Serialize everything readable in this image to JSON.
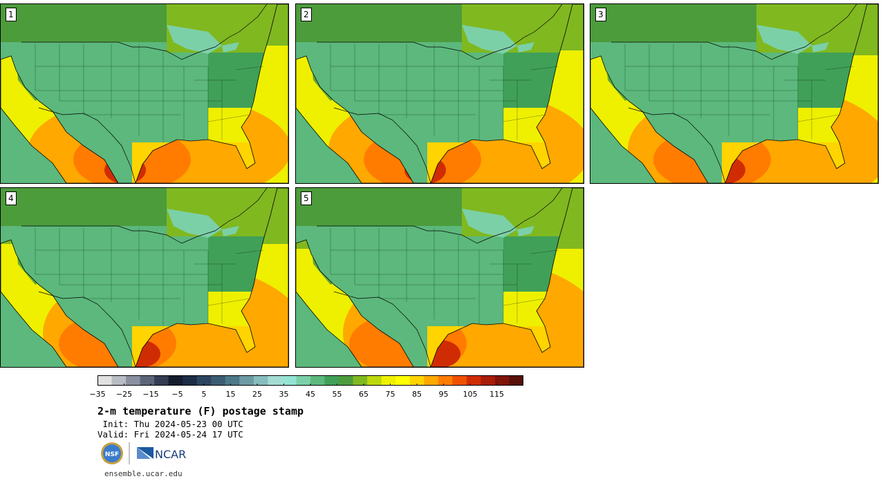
{
  "panels": [
    {
      "label": "1",
      "variant": 0
    },
    {
      "label": "2",
      "variant": 1
    },
    {
      "label": "3",
      "variant": 2
    },
    {
      "label": "4",
      "variant": 3
    },
    {
      "label": "5",
      "variant": 4
    }
  ],
  "colorbar": {
    "min": -35,
    "max": 125,
    "step": 5,
    "tick_labels": [
      "−35",
      "−25",
      "−15",
      "−5",
      "5",
      "15",
      "25",
      "35",
      "45",
      "55",
      "65",
      "75",
      "85",
      "95",
      "105",
      "115"
    ],
    "tick_values": [
      -35,
      -25,
      -15,
      -5,
      5,
      15,
      25,
      35,
      45,
      55,
      65,
      75,
      85,
      95,
      105,
      115
    ],
    "colors": [
      "#e0e0e0",
      "#b8bcc4",
      "#8a90a0",
      "#5c6478",
      "#343c54",
      "#141c2c",
      "#1c2c44",
      "#2c4460",
      "#3c5c74",
      "#4c7888",
      "#6c9aa4",
      "#86bcbc",
      "#a4dcd2",
      "#94e4d4",
      "#7cd0a8",
      "#5cb87c",
      "#40a058",
      "#4c9c3c",
      "#80b820",
      "#bcd80c",
      "#eef000",
      "#ffff00",
      "#ffd400",
      "#ffa800",
      "#ff7c00",
      "#f05000",
      "#d02c04",
      "#a81c08",
      "#801408",
      "#581008"
    ]
  },
  "title": "2-m temperature (F) postage stamp",
  "init": " Init: Thu 2024-05-23 00 UTC",
  "valid": "Valid: Fri 2024-05-24 17 UTC",
  "logos": {
    "nsf": "NSF",
    "ncar": "NCAR"
  },
  "website": "ensemble.ucar.edu",
  "map_colors": {
    "ocean_pacific": "#5cb87c",
    "ocean_atlantic_north": "#40a058",
    "ocean_gulf": "#ffd400",
    "ocean_atlantic_south": "#eef000",
    "canada_west": "#4c9c3c",
    "canada_east": "#80b820",
    "lakes": "#7cd0a8",
    "land_north": "#80b820",
    "land_mid": "#eef000",
    "land_south": "#ffa800",
    "land_hot": "#ff7c00",
    "land_hottest": "#d02c04",
    "mountains": "#4c9c3c",
    "high_peaks": "#94e4d4"
  }
}
